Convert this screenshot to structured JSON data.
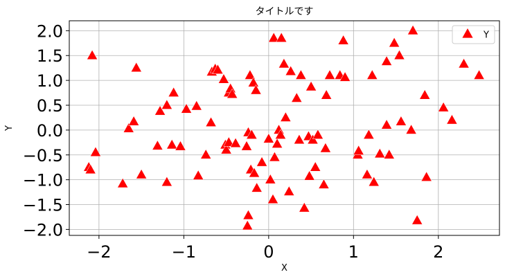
{
  "chart_data": {
    "type": "scatter",
    "title": "タイトルです",
    "xlabel": "X",
    "ylabel": "Y",
    "xlim": [
      -2.35,
      2.72
    ],
    "ylim": [
      -2.12,
      2.2
    ],
    "xticks": [
      -2,
      -1,
      0,
      1,
      2
    ],
    "xtick_labels": [
      "−2",
      "−1",
      "0",
      "1",
      "2"
    ],
    "yticks": [
      2.0,
      1.5,
      1.0,
      0.5,
      0.0,
      -0.5,
      -1.0,
      -1.5,
      -2.0
    ],
    "ytick_labels": [
      "2.0",
      "1.5",
      "1.0",
      "0.5",
      "0.0",
      "−0.5",
      "−1.0",
      "−1.5",
      "−2.0"
    ],
    "grid": true,
    "legend_position": "top-right",
    "marker": "triangle-up",
    "color": "#ff0000",
    "series": [
      {
        "name": "Y",
        "points": [
          [
            -2.08,
            1.5
          ],
          [
            -2.12,
            -0.75
          ],
          [
            -2.1,
            -0.8
          ],
          [
            -2.04,
            -0.45
          ],
          [
            -1.72,
            -1.08
          ],
          [
            -1.65,
            0.03
          ],
          [
            -1.59,
            0.17
          ],
          [
            -1.56,
            1.25
          ],
          [
            -1.5,
            -0.9
          ],
          [
            -1.31,
            -0.32
          ],
          [
            -1.28,
            0.38
          ],
          [
            -1.2,
            0.5
          ],
          [
            -1.2,
            -1.05
          ],
          [
            -1.14,
            -0.3
          ],
          [
            -1.12,
            0.75
          ],
          [
            -1.04,
            -0.33
          ],
          [
            -0.97,
            0.42
          ],
          [
            -0.85,
            0.48
          ],
          [
            -0.83,
            -0.92
          ],
          [
            -0.74,
            -0.5
          ],
          [
            -0.68,
            0.15
          ],
          [
            -0.67,
            1.17
          ],
          [
            -0.63,
            1.23
          ],
          [
            -0.6,
            1.21
          ],
          [
            -0.53,
            1.02
          ],
          [
            -0.51,
            -0.3
          ],
          [
            -0.5,
            -0.4
          ],
          [
            -0.47,
            -0.25
          ],
          [
            -0.47,
            0.75
          ],
          [
            -0.45,
            0.83
          ],
          [
            -0.43,
            0.72
          ],
          [
            -0.39,
            -0.27
          ],
          [
            -0.26,
            -0.33
          ],
          [
            -0.25,
            -1.93
          ],
          [
            -0.24,
            -1.72
          ],
          [
            -0.24,
            -0.05
          ],
          [
            -0.22,
            1.1
          ],
          [
            -0.21,
            -0.8
          ],
          [
            -0.2,
            -0.1
          ],
          [
            -0.18,
            0.95
          ],
          [
            -0.17,
            -0.87
          ],
          [
            -0.15,
            0.8
          ],
          [
            -0.14,
            -1.17
          ],
          [
            -0.08,
            -0.65
          ],
          [
            0.0,
            -0.18
          ],
          [
            0.02,
            -1.0
          ],
          [
            0.05,
            -1.4
          ],
          [
            0.06,
            1.85
          ],
          [
            0.07,
            -0.55
          ],
          [
            0.1,
            -0.28
          ],
          [
            0.12,
            0.0
          ],
          [
            0.14,
            -0.1
          ],
          [
            0.15,
            1.85
          ],
          [
            0.18,
            1.33
          ],
          [
            0.2,
            0.25
          ],
          [
            0.24,
            -1.24
          ],
          [
            0.26,
            1.18
          ],
          [
            0.33,
            0.64
          ],
          [
            0.36,
            -0.2
          ],
          [
            0.38,
            1.1
          ],
          [
            0.42,
            -1.57
          ],
          [
            0.47,
            -0.13
          ],
          [
            0.48,
            -0.93
          ],
          [
            0.5,
            0.87
          ],
          [
            0.52,
            -0.2
          ],
          [
            0.55,
            -0.75
          ],
          [
            0.58,
            -0.1
          ],
          [
            0.65,
            -1.1
          ],
          [
            0.67,
            -0.37
          ],
          [
            0.68,
            0.7
          ],
          [
            0.72,
            1.1
          ],
          [
            0.84,
            1.1
          ],
          [
            0.88,
            1.8
          ],
          [
            0.9,
            1.06
          ],
          [
            1.05,
            -0.5
          ],
          [
            1.06,
            -0.42
          ],
          [
            1.16,
            -0.9
          ],
          [
            1.18,
            -0.1
          ],
          [
            1.22,
            1.1
          ],
          [
            1.24,
            -1.05
          ],
          [
            1.31,
            -0.48
          ],
          [
            1.39,
            0.1
          ],
          [
            1.39,
            1.38
          ],
          [
            1.42,
            -0.5
          ],
          [
            1.48,
            1.75
          ],
          [
            1.54,
            1.5
          ],
          [
            1.56,
            0.17
          ],
          [
            1.68,
            0.0
          ],
          [
            1.7,
            2.0
          ],
          [
            1.75,
            -1.82
          ],
          [
            1.84,
            0.7
          ],
          [
            1.86,
            -0.95
          ],
          [
            2.06,
            0.45
          ],
          [
            2.16,
            0.2
          ],
          [
            2.3,
            1.33
          ],
          [
            2.48,
            1.1
          ]
        ]
      }
    ]
  }
}
